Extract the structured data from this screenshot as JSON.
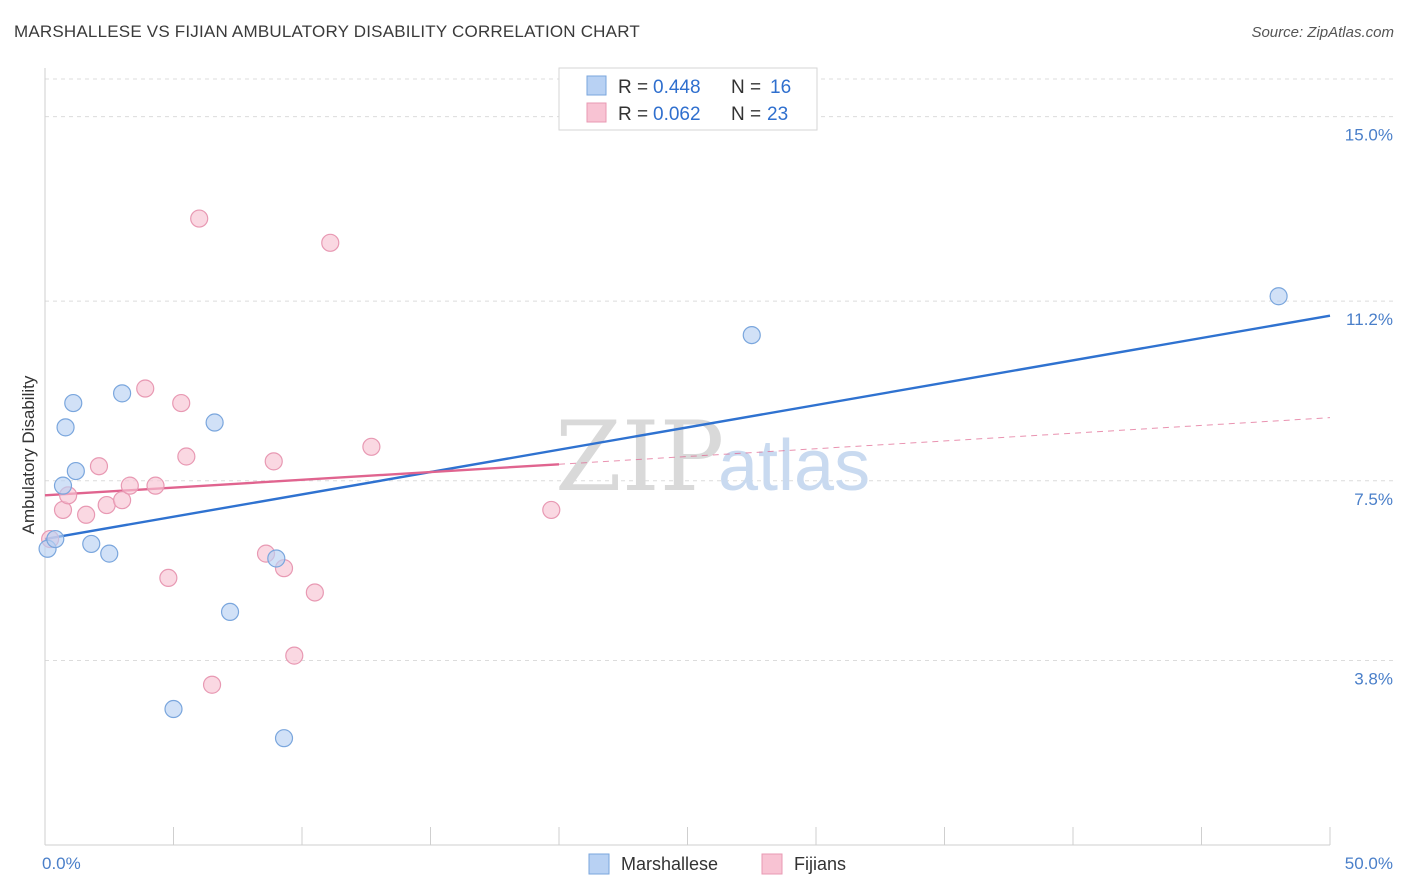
{
  "title": "MARSHALLESE VS FIJIAN AMBULATORY DISABILITY CORRELATION CHART",
  "source": "Source: ZipAtlas.com",
  "watermark": {
    "zip": "ZIP",
    "atlas": "atlas"
  },
  "colors": {
    "marshallese_fill": "#b8d1f3",
    "marshallese_stroke": "#7aa6dd",
    "marshallese_line": "#2f72d0",
    "fijian_fill": "#f8c3d3",
    "fijian_stroke": "#e899b3",
    "fijian_line": "#e0648f",
    "tick_label": "#4a7fc9"
  },
  "legend": {
    "rows": [
      {
        "r_label": "R =",
        "r_value": "0.448",
        "n_label": "N =",
        "n_value": "16"
      },
      {
        "r_label": "R =",
        "r_value": "0.062",
        "n_label": "N =",
        "n_value": "23"
      }
    ]
  },
  "chart_data": {
    "type": "scatter",
    "title": "MARSHALLESE VS FIJIAN AMBULATORY DISABILITY CORRELATION CHART",
    "xlabel": "",
    "ylabel": "Ambulatory Disability",
    "xlim": [
      0,
      50
    ],
    "ylim": [
      0,
      16
    ],
    "x_tick_labels": [
      "0.0%",
      "50.0%"
    ],
    "y_ticks": [
      3.8,
      7.5,
      11.2,
      15.0
    ],
    "y_tick_labels": [
      "3.8%",
      "7.5%",
      "11.2%",
      "15.0%"
    ],
    "grid": "horizontal dashed",
    "legend_position": "top-center",
    "series": [
      {
        "name": "Marshallese",
        "x": [
          0.1,
          0.4,
          0.8,
          1.1,
          1.2,
          0.7,
          1.8,
          2.5,
          3.0,
          5.0,
          6.6,
          7.2,
          9.0,
          9.3,
          27.5,
          48.0
        ],
        "y": [
          6.1,
          6.3,
          8.6,
          9.1,
          7.7,
          7.4,
          6.2,
          6.0,
          9.3,
          2.8,
          8.7,
          4.8,
          5.9,
          2.2,
          10.5,
          11.3
        ],
        "trend": {
          "x": [
            0,
            50
          ],
          "y": [
            6.3,
            10.9
          ]
        }
      },
      {
        "name": "Fijians",
        "x": [
          0.2,
          0.7,
          0.9,
          1.6,
          2.1,
          2.4,
          3.0,
          3.3,
          3.9,
          4.3,
          4.8,
          5.3,
          5.5,
          6.0,
          6.5,
          8.6,
          8.9,
          9.3,
          9.7,
          10.5,
          11.1,
          12.7,
          19.7
        ],
        "y": [
          6.3,
          6.9,
          7.2,
          6.8,
          7.8,
          7.0,
          7.1,
          7.4,
          9.4,
          7.4,
          5.5,
          9.1,
          8.0,
          12.9,
          3.3,
          6.0,
          7.9,
          5.7,
          3.9,
          5.2,
          12.4,
          8.2,
          6.9
        ],
        "trend": {
          "x": [
            0,
            50
          ],
          "y": [
            7.2,
            8.8
          ]
        },
        "trend_solid_until": 20
      }
    ]
  },
  "bottom_legend": {
    "items": [
      "Marshallese",
      "Fijians"
    ]
  }
}
